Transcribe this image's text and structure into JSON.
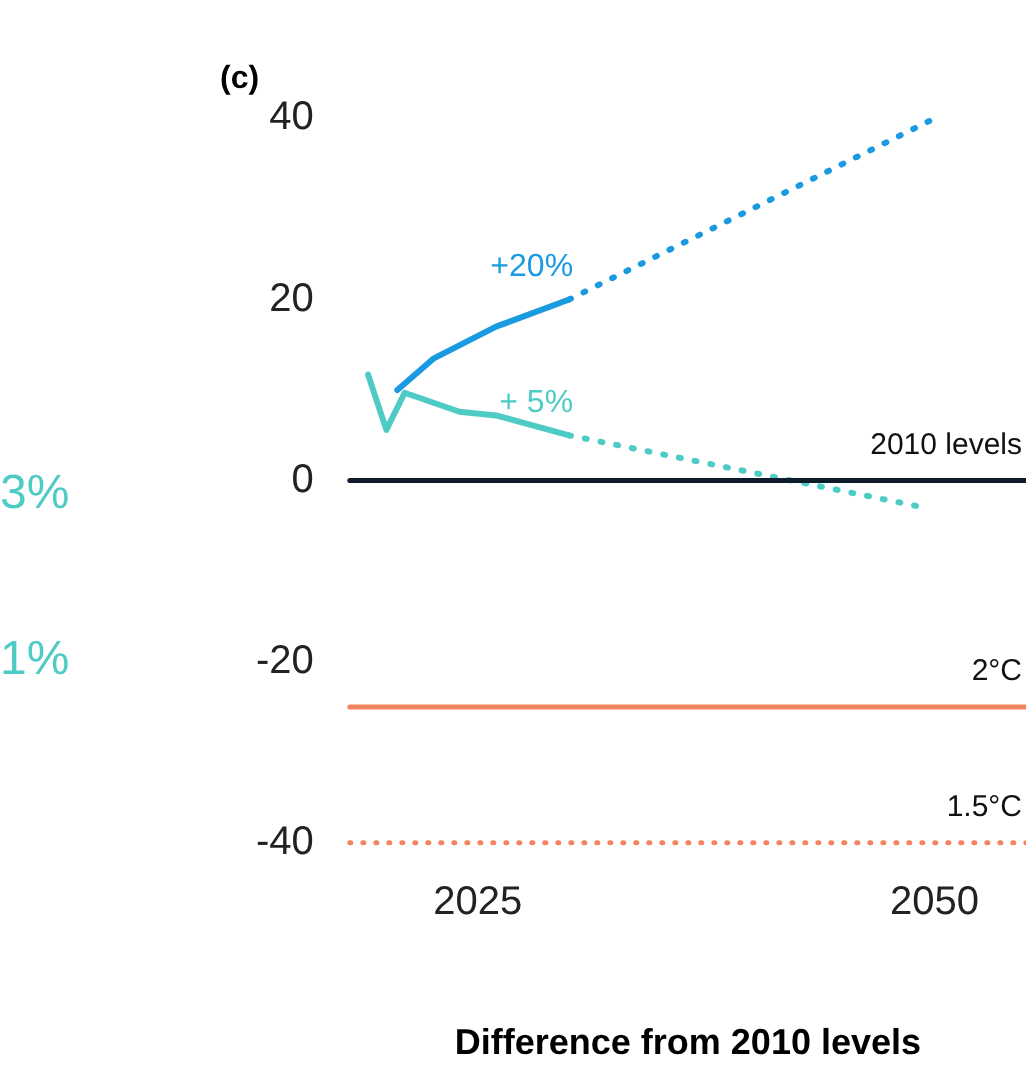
{
  "chart_data": {
    "type": "line",
    "title": "(c)",
    "xlabel": "Difference from 2010 levels",
    "xlim": [
      2018,
      2055
    ],
    "xticks": [
      2025,
      2050
    ],
    "ylim": [
      -40,
      40
    ],
    "yticks": [
      -40,
      -20,
      0,
      20,
      40
    ],
    "grid": false,
    "legend": false,
    "marker": "none",
    "series": [
      {
        "color": "#1a9ae0",
        "x": [
          2020.6,
          2022.6,
          2026,
          2030
        ],
        "values": [
          10,
          13.5,
          17,
          20
        ],
        "line_style": "solid"
      },
      {
        "color": "#1a9ae0",
        "x": [
          2030,
          2050
        ],
        "values": [
          20,
          40
        ],
        "line_style": "dotted"
      },
      {
        "color": "#4ecbc4",
        "x": [
          2019,
          2020,
          2021,
          2024,
          2026,
          2030
        ],
        "values": [
          11.7,
          5.6,
          9.7,
          7.6,
          7.2,
          5
        ],
        "line_style": "solid"
      },
      {
        "color": "#4ecbc4",
        "x": [
          2030,
          2049.5
        ],
        "values": [
          5,
          -3
        ],
        "line_style": "dotted"
      }
    ],
    "ref_lines": [
      {
        "axis": "y",
        "value": 0,
        "label": "2010 levels",
        "color": "#0d1b2a",
        "line_style": "solid"
      },
      {
        "axis": "y",
        "value": -25,
        "label": "2°C",
        "color": "#f4845f",
        "line_style": "solid"
      },
      {
        "axis": "y",
        "value": -40,
        "label": "1.5°C",
        "color": "#f4845f",
        "line_style": "dotted"
      }
    ],
    "annotations": [
      {
        "text": "+20%",
        "x": 2030,
        "y": 20
      },
      {
        "text": "+ 5%",
        "x": 2030,
        "y": 5
      },
      "3%",
      "1%"
    ]
  }
}
